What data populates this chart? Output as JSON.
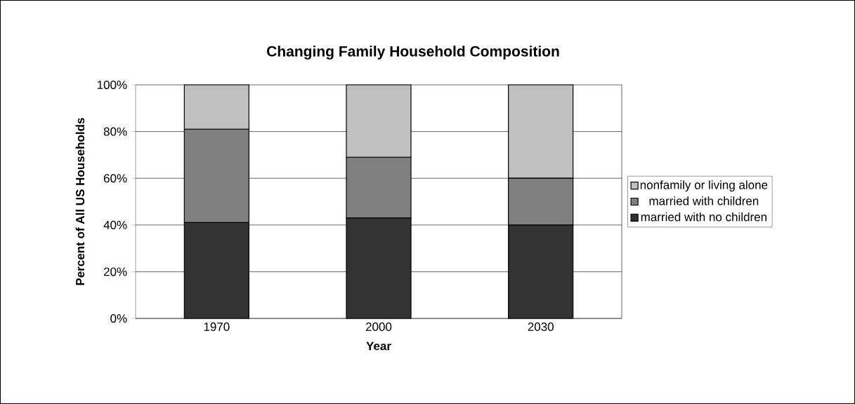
{
  "chart_data": {
    "type": "bar",
    "title": "Changing Family Household Composition",
    "xlabel": "Year",
    "ylabel": "Percent of All US Households",
    "categories": [
      "1970",
      "2000",
      "2030"
    ],
    "stacked": true,
    "series": [
      {
        "name": "married with no children",
        "color": "#333333",
        "values": [
          41,
          43,
          40
        ]
      },
      {
        "name": "married with children",
        "color": "#808080",
        "values": [
          40,
          26,
          20
        ]
      },
      {
        "name": "nonfamily or living alone",
        "color": "#c0c0c0",
        "values": [
          19,
          31,
          40
        ]
      }
    ],
    "ylim": [
      0,
      100
    ],
    "yticks": [
      {
        "value": 0,
        "label": "0%"
      },
      {
        "value": 20,
        "label": "20%"
      },
      {
        "value": 40,
        "label": "40%"
      },
      {
        "value": 60,
        "label": "60%"
      },
      {
        "value": 80,
        "label": "80%"
      },
      {
        "value": 100,
        "label": "100%"
      }
    ],
    "grid": "y",
    "legend": "right"
  }
}
